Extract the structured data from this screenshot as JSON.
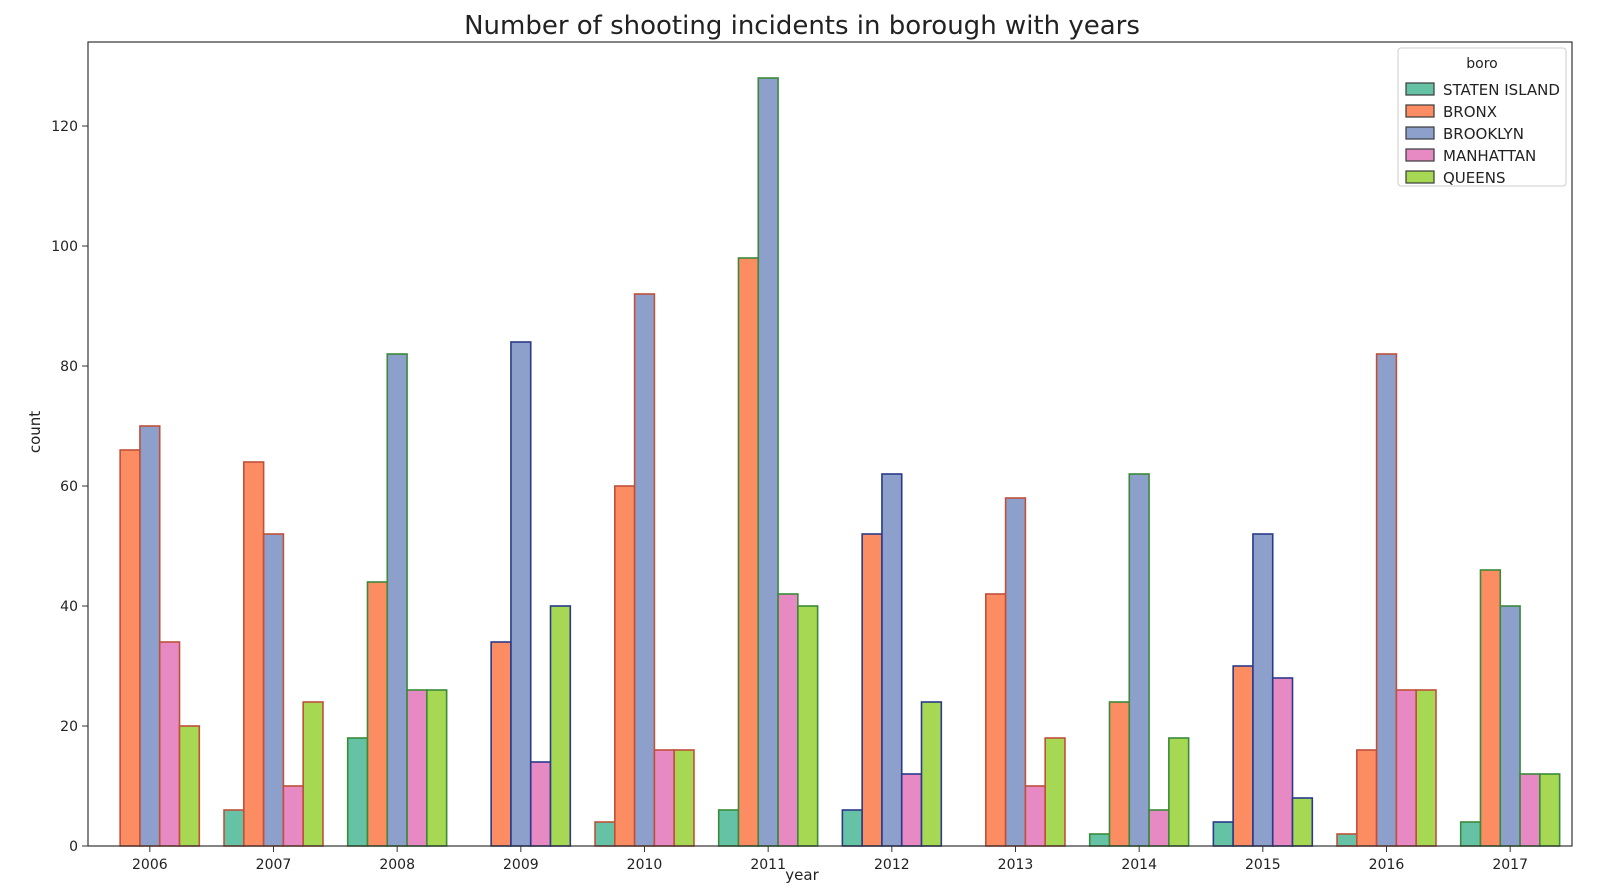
{
  "chart_data": {
    "type": "bar",
    "title": "Number of shooting incidents in borough with years",
    "xlabel": "year",
    "ylabel": "count",
    "ylim": [
      0,
      134
    ],
    "yticks": [
      0,
      20,
      40,
      60,
      80,
      100,
      120
    ],
    "grid": false,
    "legend": {
      "title": "boro",
      "position": "top-right"
    },
    "categories": [
      "2006",
      "2007",
      "2008",
      "2009",
      "2010",
      "2011",
      "2012",
      "2013",
      "2014",
      "2015",
      "2016",
      "2017"
    ],
    "series": [
      {
        "name": "STATEN ISLAND",
        "color": "#66c2a5",
        "values": [
          0,
          6,
          18,
          0,
          4,
          6,
          6,
          0,
          2,
          4,
          2,
          4
        ]
      },
      {
        "name": "BRONX",
        "color": "#fc8d62",
        "values": [
          66,
          64,
          44,
          34,
          60,
          98,
          52,
          42,
          24,
          30,
          16,
          46
        ]
      },
      {
        "name": "BROOKLYN",
        "color": "#8da0cb",
        "values": [
          70,
          52,
          82,
          84,
          92,
          128,
          62,
          58,
          62,
          52,
          82,
          40
        ]
      },
      {
        "name": "MANHATTAN",
        "color": "#e78ac3",
        "values": [
          34,
          10,
          26,
          14,
          16,
          42,
          12,
          10,
          6,
          28,
          26,
          12
        ]
      },
      {
        "name": "QUEENS",
        "color": "#a6d854",
        "values": [
          20,
          24,
          26,
          40,
          16,
          40,
          24,
          18,
          18,
          8,
          26,
          12
        ]
      }
    ],
    "edge_colors": {
      "2006": "#c0503a",
      "2007": "#c0503a",
      "2008": "#3a8a3a",
      "2009": "#2a3a8a",
      "2010": "#c0503a",
      "2011": "#3a8a3a",
      "2012": "#2a3a8a",
      "2013": "#c0503a",
      "2014": "#3a8a3a",
      "2015": "#2a3a8a",
      "2016": "#c0503a",
      "2017": "#3a8a3a"
    }
  }
}
